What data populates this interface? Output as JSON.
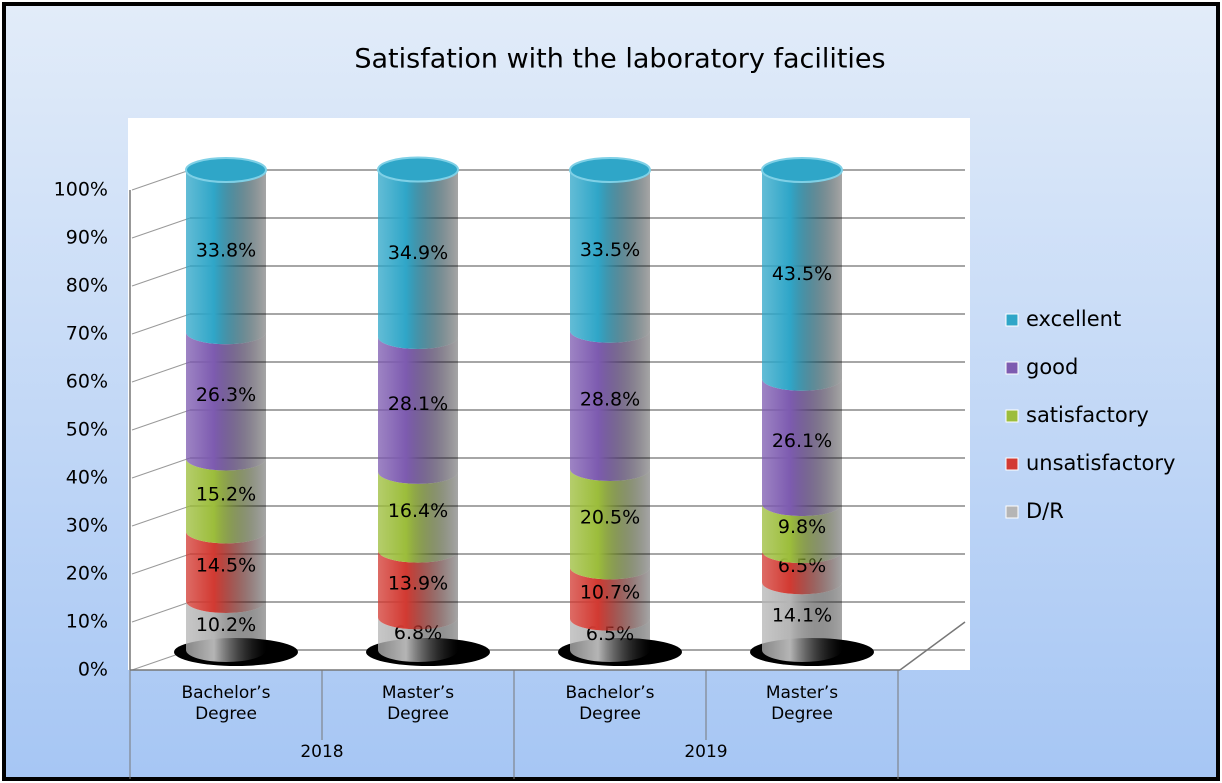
{
  "chart_data": {
    "type": "stacked-cylinder",
    "title": "Satisfation with the laboratory facilities",
    "categories": [
      "Bachelor’s Degree",
      "Master’s Degree",
      "Bachelor’s Degree",
      "Master’s Degree"
    ],
    "category_groups": [
      "2018",
      "2019"
    ],
    "ylim": [
      0,
      100
    ],
    "yticks": [
      {
        "value": 0,
        "label": "0%"
      },
      {
        "value": 10,
        "label": "10%"
      },
      {
        "value": 20,
        "label": "20%"
      },
      {
        "value": 30,
        "label": "30%"
      },
      {
        "value": 40,
        "label": "40%"
      },
      {
        "value": 50,
        "label": "50%"
      },
      {
        "value": 60,
        "label": "60%"
      },
      {
        "value": 70,
        "label": "70%"
      },
      {
        "value": 80,
        "label": "80%"
      },
      {
        "value": 90,
        "label": "90%"
      },
      {
        "value": 100,
        "label": "100%"
      }
    ],
    "grid": true,
    "legend": "right",
    "series": [
      {
        "name": "D/R",
        "color": "#b5b5b5",
        "values": [
          10.2,
          6.8,
          6.5,
          14.1
        ],
        "value_labels": [
          "10.2%",
          "6.8%",
          "6.5%",
          "14.1%"
        ]
      },
      {
        "name": "unsatisfactory",
        "color": "#d23a32",
        "values": [
          14.5,
          13.9,
          10.7,
          6.5
        ],
        "value_labels": [
          "14.5%",
          "13.9%",
          "10.7%",
          "6.5%"
        ]
      },
      {
        "name": "satisfactory",
        "color": "#9cbd3b",
        "values": [
          15.2,
          16.4,
          20.5,
          9.8
        ],
        "value_labels": [
          "15.2%",
          "16.4%",
          "20.5%",
          "9.8%"
        ]
      },
      {
        "name": "good",
        "color": "#7d5bb0",
        "values": [
          26.3,
          28.1,
          28.8,
          26.1
        ],
        "value_labels": [
          "26.3%",
          "28.1%",
          "28.8%",
          "26.1%"
        ]
      },
      {
        "name": "excellent",
        "color": "#2fa6c8",
        "values": [
          33.8,
          34.9,
          33.5,
          43.5
        ],
        "value_labels": [
          "33.8%",
          "34.9%",
          "33.5%",
          "43.5%"
        ]
      }
    ]
  }
}
